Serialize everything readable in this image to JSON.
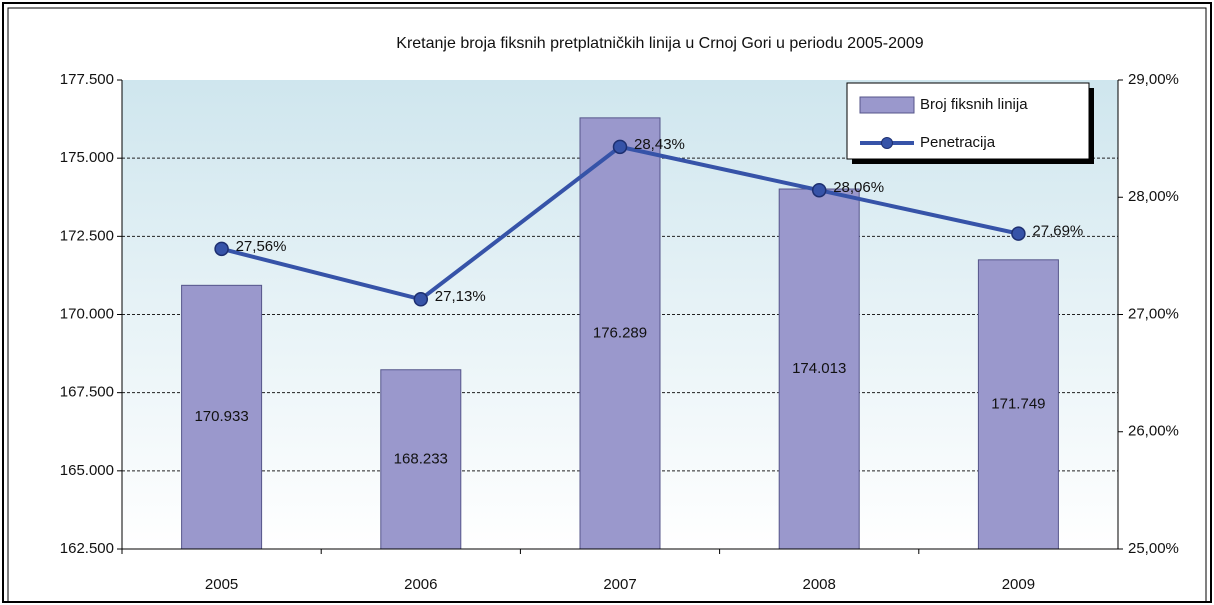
{
  "chart_data": {
    "type": "combo",
    "title": "Kretanje broja fiksnih pretplatničkih linija u Crnoj Gori u periodu 2005-2009",
    "categories": [
      "2005",
      "2006",
      "2007",
      "2008",
      "2009"
    ],
    "series": [
      {
        "name": "Broj fiksnih linija",
        "type": "bar",
        "color": "#9a98cc",
        "values": [
          170933,
          168233,
          176289,
          174013,
          171749
        ],
        "value_labels": [
          "170.933",
          "168.233",
          "176.289",
          "174.013",
          "171.749"
        ]
      },
      {
        "name": "Penetracija",
        "type": "line",
        "axis": "y2",
        "color": "#3653a8",
        "values": [
          27.56,
          27.13,
          28.43,
          28.06,
          27.69
        ],
        "value_labels": [
          "27,56%",
          "27,13%",
          "28,43%",
          "28,06%",
          "27,69%"
        ]
      }
    ],
    "ylim": [
      162500,
      177500
    ],
    "yticks": [
      {
        "value": 162500,
        "label": "162.500"
      },
      {
        "value": 165000,
        "label": "165.000"
      },
      {
        "value": 167500,
        "label": "167.500"
      },
      {
        "value": 170000,
        "label": "170.000"
      },
      {
        "value": 172500,
        "label": "172.500"
      },
      {
        "value": 175000,
        "label": "175.000"
      },
      {
        "value": 177500,
        "label": "177.500"
      }
    ],
    "y2lim": [
      25,
      29
    ],
    "y2ticks": [
      {
        "value": 25,
        "label": "25,00%"
      },
      {
        "value": 26,
        "label": "26,00%"
      },
      {
        "value": 27,
        "label": "27,00%"
      },
      {
        "value": 28,
        "label": "28,00%"
      },
      {
        "value": 29,
        "label": "29,00%"
      }
    ],
    "grid": true,
    "legend": "upper right"
  }
}
